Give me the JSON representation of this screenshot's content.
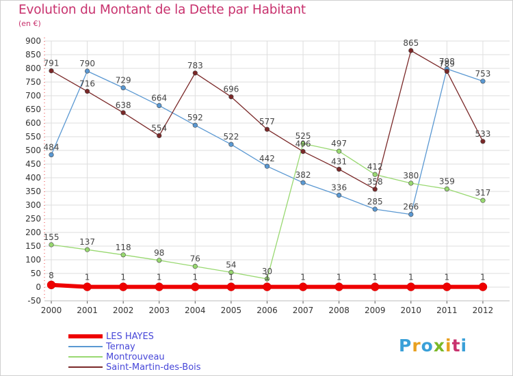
{
  "title": "Evolution du Montant de la Dette par Habitant",
  "unit_label": "(en €)",
  "logo": {
    "text": "Proxiti",
    "colors": [
      "#3aa0d8",
      "#e8a020",
      "#3aa0d8",
      "#7ab828",
      "#e8a020",
      "#c8326e",
      "#3aa0d8"
    ]
  },
  "chart_data": {
    "type": "line",
    "title": "Evolution du Montant de la Dette par Habitant",
    "ylabel": "(en €)",
    "xlabel": "",
    "x": [
      "2000",
      "2001",
      "2002",
      "2003",
      "2004",
      "2005",
      "2006",
      "2007",
      "2008",
      "2009",
      "2010",
      "2011",
      "2012"
    ],
    "ylim": [
      -50,
      900
    ],
    "yticks": [
      -50,
      0,
      50,
      100,
      150,
      200,
      250,
      300,
      350,
      400,
      450,
      500,
      550,
      600,
      650,
      700,
      750,
      800,
      850,
      900
    ],
    "grid": true,
    "legend_position": "bottom-left",
    "series": [
      {
        "name": "LES HAYES",
        "color": "#ee0000",
        "values": [
          8,
          1,
          1,
          1,
          1,
          1,
          1,
          1,
          1,
          1,
          1,
          1,
          1
        ],
        "labels": [
          "8",
          "1",
          "1",
          "1",
          "1",
          "1",
          "1",
          "1",
          "1",
          "1",
          "1",
          "1",
          "1"
        ]
      },
      {
        "name": "Ternay",
        "color": "#5a98d2",
        "values": [
          484,
          790,
          729,
          664,
          592,
          522,
          442,
          382,
          336,
          285,
          266,
          798,
          753
        ],
        "labels": [
          "484",
          "790",
          "729",
          "664",
          "592",
          "522",
          "442",
          "382",
          "336",
          "285",
          "266",
          "798",
          "753"
        ]
      },
      {
        "name": "Montrouveau",
        "color": "#98d870",
        "values": [
          155,
          137,
          118,
          98,
          76,
          54,
          30,
          525,
          497,
          412,
          380,
          359,
          317
        ],
        "labels": [
          "155",
          "137",
          "118",
          "98",
          "76",
          "54",
          "30",
          "525",
          "497",
          "412",
          "380",
          "359",
          "317"
        ]
      },
      {
        "name": "Saint-Martin-des-Bois",
        "color": "#7a2828",
        "values": [
          791,
          716,
          638,
          554,
          783,
          696,
          577,
          496,
          431,
          358,
          865,
          789,
          533
        ],
        "labels": [
          "791",
          "716",
          "638",
          "554",
          "783",
          "696",
          "577",
          "496",
          "431",
          "358",
          "865",
          "789",
          "533"
        ]
      }
    ]
  }
}
